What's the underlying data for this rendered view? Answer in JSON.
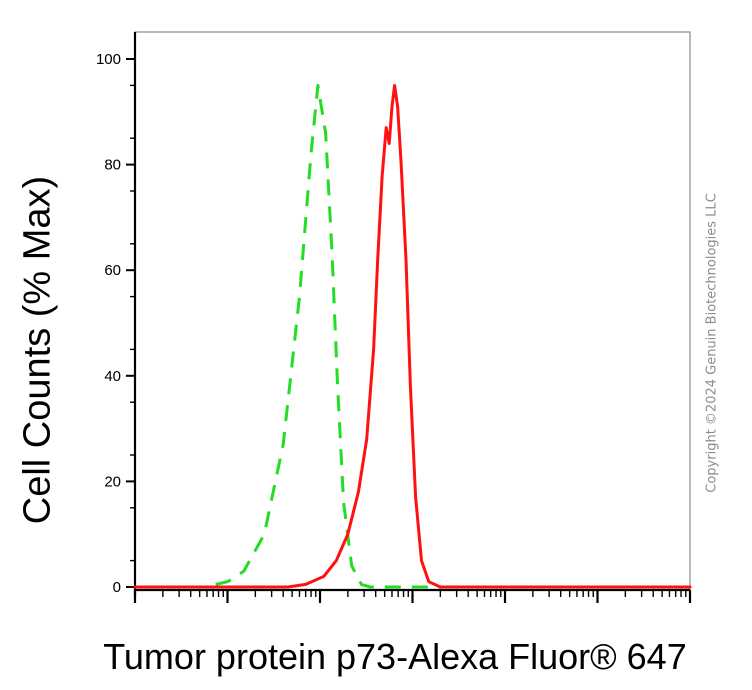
{
  "copyright": "Copyright ©2024 Genuin Biotechnologies LLC",
  "chart_data": {
    "type": "line",
    "title": "",
    "xlabel": "Tumor protein p73-Alexa Fluor® 647",
    "ylabel": "Cell Counts (% Max)",
    "ylim": [
      0,
      100
    ],
    "yticks": [
      "0",
      "20",
      "40",
      "60",
      "80",
      "100"
    ],
    "x_scale": "log",
    "xlim": [
      10,
      10000000
    ],
    "grid": false,
    "series": [
      {
        "color": "#22dd22",
        "style": "dashed",
        "points": [
          [
            10,
            0
          ],
          [
            56,
            0
          ],
          [
            100,
            1
          ],
          [
            150,
            3
          ],
          [
            250,
            10
          ],
          [
            400,
            27
          ],
          [
            600,
            55
          ],
          [
            800,
            82
          ],
          [
            950,
            95
          ],
          [
            1150,
            86
          ],
          [
            1350,
            63
          ],
          [
            1550,
            38
          ],
          [
            1800,
            16
          ],
          [
            2200,
            4
          ],
          [
            2800,
            0.5
          ],
          [
            3500,
            0
          ],
          [
            10000000,
            0
          ]
        ]
      },
      {
        "color": "#ff1111",
        "style": "solid",
        "points": [
          [
            10,
            0
          ],
          [
            450,
            0
          ],
          [
            700,
            0.5
          ],
          [
            1100,
            2
          ],
          [
            1500,
            5
          ],
          [
            2000,
            10
          ],
          [
            2600,
            18
          ],
          [
            3200,
            28
          ],
          [
            3800,
            45
          ],
          [
            4200,
            62
          ],
          [
            4700,
            78
          ],
          [
            5200,
            87
          ],
          [
            5600,
            84
          ],
          [
            6000,
            91
          ],
          [
            6400,
            95
          ],
          [
            6900,
            91
          ],
          [
            7500,
            81
          ],
          [
            8500,
            62
          ],
          [
            9500,
            38
          ],
          [
            10800,
            17
          ],
          [
            12500,
            5
          ],
          [
            15000,
            1
          ],
          [
            20000,
            0
          ],
          [
            10000000,
            0
          ]
        ]
      }
    ]
  }
}
